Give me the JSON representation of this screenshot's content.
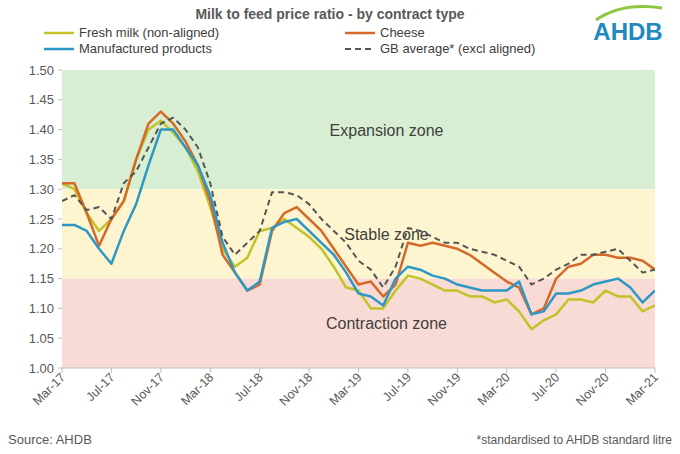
{
  "chart_data": {
    "type": "line",
    "title": "Milk to feed price ratio - by contract type",
    "logo": "AHDB",
    "source": "Source: AHDB",
    "footnote": "*standardised to AHDB standard litre",
    "categories": [
      "Mar-17",
      null,
      null,
      null,
      "Jul-17",
      null,
      null,
      null,
      "Nov-17",
      null,
      null,
      null,
      "Mar-18",
      null,
      null,
      null,
      "Jul-18",
      null,
      null,
      null,
      "Nov-18",
      null,
      null,
      null,
      "Mar-19",
      null,
      null,
      null,
      "Jul-19",
      null,
      null,
      null,
      "Nov-19",
      null,
      null,
      null,
      "Mar-20",
      null,
      null,
      null,
      "Jul-20",
      null,
      null,
      null,
      "Nov-20",
      null,
      null,
      null,
      "Mar-21"
    ],
    "series": [
      {
        "name": "Fresh milk (non-aligned)",
        "color": "#c3c229",
        "line_style": "solid",
        "values": [
          1.31,
          1.3,
          1.26,
          1.23,
          1.25,
          1.28,
          1.35,
          1.4,
          1.415,
          1.395,
          1.37,
          1.33,
          1.27,
          1.2,
          1.17,
          1.185,
          1.23,
          1.235,
          1.25,
          1.235,
          1.22,
          1.2,
          1.17,
          1.135,
          1.13,
          1.1,
          1.1,
          1.13,
          1.155,
          1.15,
          1.14,
          1.13,
          1.13,
          1.12,
          1.12,
          1.11,
          1.115,
          1.095,
          1.065,
          1.08,
          1.09,
          1.115,
          1.115,
          1.11,
          1.13,
          1.12,
          1.12,
          1.095,
          1.105
        ]
      },
      {
        "name": "Cheese",
        "color": "#d4692a",
        "line_style": "solid",
        "values": [
          1.31,
          1.31,
          1.26,
          1.205,
          1.25,
          1.28,
          1.35,
          1.41,
          1.43,
          1.41,
          1.38,
          1.34,
          1.28,
          1.19,
          1.16,
          1.13,
          1.14,
          1.23,
          1.26,
          1.27,
          1.25,
          1.23,
          1.2,
          1.17,
          1.14,
          1.145,
          1.12,
          1.14,
          1.21,
          1.205,
          1.21,
          1.205,
          1.2,
          1.19,
          1.175,
          1.16,
          1.145,
          1.135,
          1.09,
          1.1,
          1.15,
          1.17,
          1.175,
          1.19,
          1.19,
          1.185,
          1.185,
          1.18,
          1.165
        ]
      },
      {
        "name": "Manufactured products",
        "color": "#2e98c5",
        "line_style": "solid",
        "values": [
          1.24,
          1.24,
          1.23,
          1.2,
          1.175,
          1.23,
          1.275,
          1.34,
          1.4,
          1.4,
          1.37,
          1.34,
          1.29,
          1.21,
          1.16,
          1.13,
          1.145,
          1.235,
          1.245,
          1.25,
          1.23,
          1.21,
          1.19,
          1.16,
          1.125,
          1.12,
          1.105,
          1.15,
          1.17,
          1.165,
          1.155,
          1.15,
          1.14,
          1.135,
          1.13,
          1.13,
          1.13,
          1.145,
          1.09,
          1.095,
          1.125,
          1.125,
          1.13,
          1.14,
          1.145,
          1.15,
          1.135,
          1.11,
          1.13
        ]
      },
      {
        "name": "GB average* (excl aligned)",
        "color": "#555555",
        "line_style": "dashed",
        "values": [
          1.28,
          1.29,
          1.265,
          1.27,
          1.25,
          1.31,
          1.33,
          1.37,
          1.41,
          1.42,
          1.4,
          1.37,
          1.31,
          1.22,
          1.19,
          1.21,
          1.23,
          1.295,
          1.295,
          1.29,
          1.275,
          1.25,
          1.23,
          1.21,
          1.18,
          1.165,
          1.135,
          1.17,
          1.235,
          1.23,
          1.22,
          1.21,
          1.21,
          1.2,
          1.195,
          1.19,
          1.18,
          1.17,
          1.14,
          1.15,
          1.165,
          1.175,
          1.19,
          1.19,
          1.195,
          1.2,
          1.18,
          1.16,
          1.165
        ]
      }
    ],
    "zones": [
      {
        "label": "Expansion zone",
        "from": 1.3,
        "to": 1.5,
        "color": "#d8eed2"
      },
      {
        "label": "Stable zone",
        "from": 1.15,
        "to": 1.3,
        "color": "#fdf5cf"
      },
      {
        "label": "Contraction zone",
        "from": 1.0,
        "to": 1.15,
        "color": "#f9dbd6"
      }
    ],
    "ylim": [
      1.0,
      1.5
    ],
    "yticks": [
      {
        "value": 1.0,
        "label": "1.00"
      },
      {
        "value": 1.05,
        "label": "1.05"
      },
      {
        "value": 1.1,
        "label": "1.10"
      },
      {
        "value": 1.15,
        "label": "1.15"
      },
      {
        "value": 1.2,
        "label": "1.20"
      },
      {
        "value": 1.25,
        "label": "1.25"
      },
      {
        "value": 1.3,
        "label": "1.30"
      },
      {
        "value": 1.35,
        "label": "1.35"
      },
      {
        "value": 1.4,
        "label": "1.40"
      },
      {
        "value": 1.45,
        "label": "1.45"
      },
      {
        "value": 1.5,
        "label": "1.50"
      }
    ],
    "grid": false,
    "legend": "top"
  }
}
